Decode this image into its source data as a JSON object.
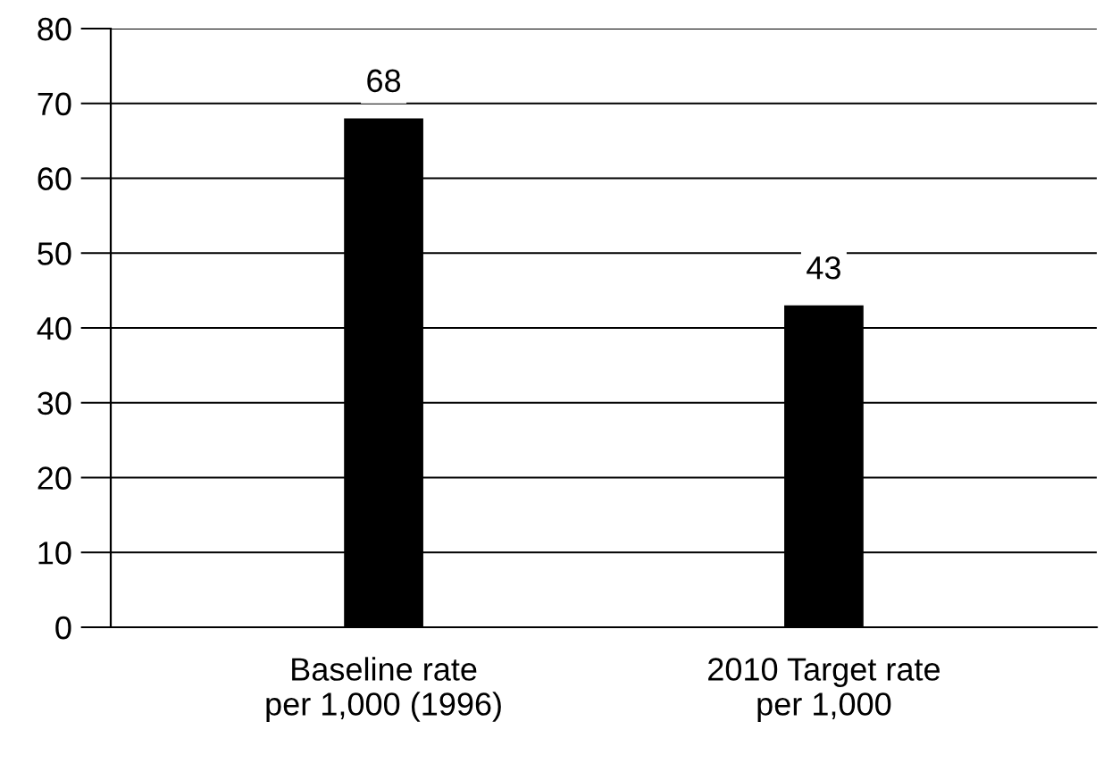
{
  "chart_data": {
    "type": "bar",
    "categories": [
      "Baseline rate\nper 1,000 (1996)",
      "2010 Target rate\nper 1,000"
    ],
    "values": [
      68,
      43
    ],
    "color": "#000000",
    "ylim": [
      0,
      80
    ],
    "yticks": [
      0,
      10,
      20,
      30,
      40,
      50,
      60,
      70,
      80
    ],
    "grid": "y",
    "data_labels": true
  }
}
